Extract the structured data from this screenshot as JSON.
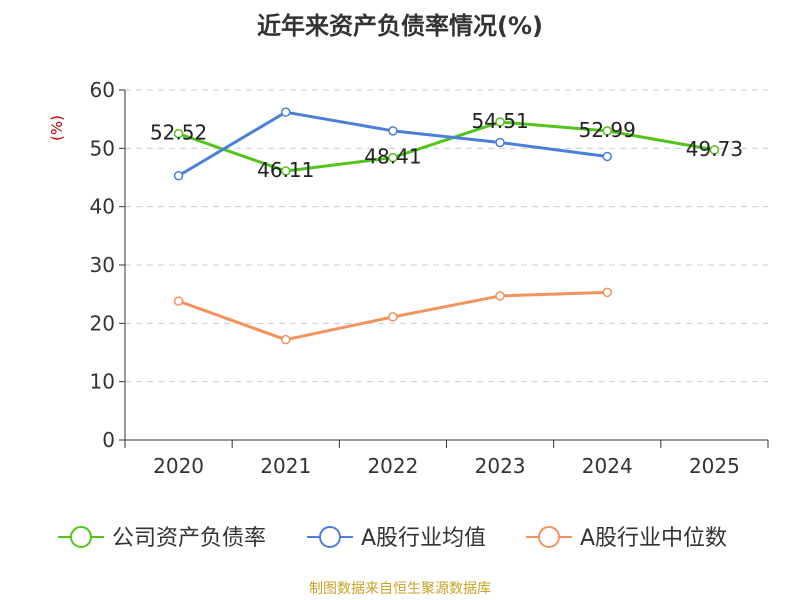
{
  "chart_data": {
    "type": "line",
    "title": "近年来资产负债率情况(%)",
    "ylabel": "(%)",
    "ylim": [
      0,
      60
    ],
    "yticks": [
      0,
      10,
      20,
      30,
      40,
      50,
      60
    ],
    "categories": [
      "2020",
      "2021",
      "2022",
      "2023",
      "2024",
      "2025"
    ],
    "grid": true,
    "legend_position": "bottom",
    "series": [
      {
        "name": "公司资产负债率",
        "color": "#52c41a",
        "values": [
          52.52,
          46.11,
          48.41,
          54.51,
          52.99,
          49.73
        ],
        "show_labels": true
      },
      {
        "name": "A股行业均值",
        "color": "#4a7fdc",
        "values": [
          45.3,
          56.2,
          53.0,
          51.0,
          48.6,
          null
        ],
        "show_labels": false
      },
      {
        "name": "A股行业中位数",
        "color": "#f4925e",
        "values": [
          23.8,
          17.2,
          21.1,
          24.7,
          25.3,
          null
        ],
        "show_labels": false
      }
    ]
  },
  "source": "制图数据来自恒生聚源数据库"
}
